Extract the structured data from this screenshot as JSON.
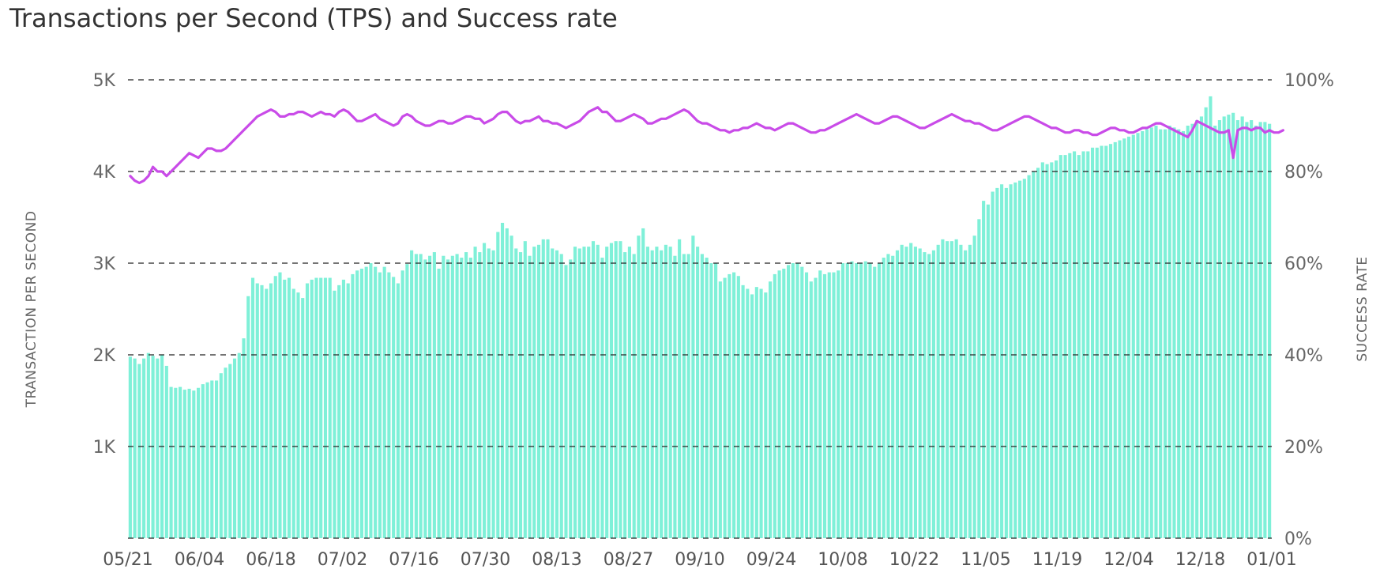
{
  "title": "Transactions per Second (TPS) and Success rate",
  "chart_data": {
    "type": "bar",
    "title": "Transactions per Second (TPS) and Success rate",
    "ylabel": "TRANSACTION PER SECOND",
    "y2label": "SUCCESS RATE",
    "ylim": [
      0,
      5000
    ],
    "y2lim": [
      0,
      100
    ],
    "yticks": [
      "5K",
      "4K",
      "3K",
      "2K",
      "1K"
    ],
    "y2ticks": [
      "100%",
      "80%",
      "60%",
      "40%",
      "20%",
      "0%"
    ],
    "xticks": [
      "05/21",
      "06/04",
      "06/18",
      "07/02",
      "07/16",
      "07/30",
      "08/13",
      "08/27",
      "09/10",
      "09/24",
      "10/08",
      "10/22",
      "11/05",
      "11/19",
      "12/04",
      "12/18",
      "01/01"
    ],
    "grid": true,
    "colors": {
      "bars": "#7ff0d8",
      "line": "#c94be8",
      "grid": "#222222"
    },
    "series": [
      {
        "type": "bar",
        "axis": "left",
        "values": [
          1980,
          1960,
          1900,
          1960,
          2020,
          1990,
          1960,
          2000,
          1880,
          1650,
          1640,
          1650,
          1620,
          1630,
          1610,
          1640,
          1680,
          1700,
          1720,
          1720,
          1800,
          1860,
          1900,
          1960,
          2020,
          2180,
          2640,
          2840,
          2780,
          2760,
          2720,
          2780,
          2860,
          2900,
          2820,
          2840,
          2720,
          2680,
          2620,
          2780,
          2820,
          2840,
          2840,
          2840,
          2840,
          2700,
          2760,
          2820,
          2780,
          2880,
          2920,
          2940,
          2960,
          3000,
          2960,
          2900,
          2960,
          2900,
          2850,
          2780,
          2920,
          2990,
          3140,
          3100,
          3100,
          3040,
          3080,
          3120,
          2940,
          3080,
          3040,
          3080,
          3100,
          3060,
          3120,
          3060,
          3180,
          3120,
          3220,
          3160,
          3140,
          3340,
          3440,
          3380,
          3300,
          3160,
          3120,
          3240,
          3080,
          3180,
          3200,
          3260,
          3260,
          3160,
          3140,
          3100,
          2980,
          3040,
          3180,
          3160,
          3180,
          3180,
          3240,
          3200,
          3060,
          3180,
          3220,
          3240,
          3240,
          3120,
          3180,
          3100,
          3300,
          3380,
          3180,
          3140,
          3180,
          3140,
          3200,
          3180,
          3080,
          3260,
          3100,
          3100,
          3300,
          3180,
          3100,
          3060,
          3000,
          3000,
          2800,
          2840,
          2880,
          2900,
          2860,
          2760,
          2720,
          2660,
          2740,
          2720,
          2680,
          2800,
          2880,
          2920,
          2940,
          2980,
          3000,
          3000,
          2960,
          2900,
          2800,
          2840,
          2920,
          2880,
          2900,
          2900,
          2920,
          3000,
          3000,
          3020,
          3000,
          3000,
          3020,
          3000,
          2960,
          3000,
          3060,
          3100,
          3080,
          3140,
          3200,
          3180,
          3220,
          3180,
          3160,
          3120,
          3100,
          3140,
          3200,
          3260,
          3240,
          3240,
          3260,
          3200,
          3140,
          3200,
          3300,
          3480,
          3680,
          3640,
          3780,
          3820,
          3860,
          3820,
          3860,
          3880,
          3900,
          3920,
          3960,
          4000,
          4040,
          4100,
          4080,
          4100,
          4120,
          4180,
          4180,
          4200,
          4220,
          4180,
          4220,
          4220,
          4260,
          4260,
          4280,
          4280,
          4300,
          4320,
          4340,
          4360,
          4380,
          4400,
          4420,
          4440,
          4460,
          4480,
          4500,
          4460,
          4460,
          4500,
          4480,
          4460,
          4440,
          4500,
          4520,
          4560,
          4600,
          4700,
          4820,
          4500,
          4560,
          4600,
          4620,
          4640,
          4560,
          4600,
          4540,
          4560,
          4500,
          4540,
          4540,
          4520
        ]
      },
      {
        "type": "line",
        "axis": "right",
        "values": [
          79,
          78,
          77.5,
          78,
          79,
          81,
          80,
          80,
          79,
          80,
          81,
          82,
          83,
          84,
          83.5,
          83,
          84,
          85,
          85,
          84.5,
          84.5,
          85,
          86,
          87,
          88,
          89,
          90,
          91,
          92,
          92.5,
          93,
          93.5,
          93,
          92,
          92,
          92.5,
          92.5,
          93,
          93,
          92.5,
          92,
          92.5,
          93,
          92.5,
          92.5,
          92,
          93,
          93.5,
          93,
          92,
          91,
          91,
          91.5,
          92,
          92.5,
          91.5,
          91,
          90.5,
          90,
          90.5,
          92,
          92.5,
          92,
          91,
          90.5,
          90,
          90,
          90.5,
          91,
          91,
          90.5,
          90.5,
          91,
          91.5,
          92,
          92,
          91.5,
          91.5,
          90.5,
          91,
          91.5,
          92.5,
          93,
          93,
          92,
          91,
          90.5,
          91,
          91,
          91.5,
          92,
          91,
          91,
          90.5,
          90.5,
          90,
          89.5,
          90,
          90.5,
          91,
          92,
          93,
          93.5,
          94,
          93,
          93,
          92,
          91,
          91,
          91.5,
          92,
          92.5,
          92,
          91.5,
          90.5,
          90.5,
          91,
          91.5,
          91.5,
          92,
          92.5,
          93,
          93.5,
          93,
          92,
          91,
          90.5,
          90.5,
          90,
          89.5,
          89,
          89,
          88.5,
          89,
          89,
          89.5,
          89.5,
          90,
          90.5,
          90,
          89.5,
          89.5,
          89,
          89.5,
          90,
          90.5,
          90.5,
          90,
          89.5,
          89,
          88.5,
          88.5,
          89,
          89,
          89.5,
          90,
          90.5,
          91,
          91.5,
          92,
          92.5,
          92,
          91.5,
          91,
          90.5,
          90.5,
          91,
          91.5,
          92,
          92,
          91.5,
          91,
          90.5,
          90,
          89.5,
          89.5,
          90,
          90.5,
          91,
          91.5,
          92,
          92.5,
          92,
          91.5,
          91,
          91,
          90.5,
          90.5,
          90,
          89.5,
          89,
          89,
          89.5,
          90,
          90.5,
          91,
          91.5,
          92,
          92,
          91.5,
          91,
          90.5,
          90,
          89.5,
          89.5,
          89,
          88.5,
          88.5,
          89,
          89,
          88.5,
          88.5,
          88,
          88,
          88.5,
          89,
          89.5,
          89.5,
          89,
          89,
          88.5,
          88.5,
          89,
          89.5,
          89.5,
          90,
          90.5,
          90.5,
          90,
          89.5,
          89,
          88.5,
          88,
          87.5,
          89,
          91,
          90.5,
          90,
          89.5,
          89,
          88.5,
          88.5,
          89,
          83,
          89,
          89.5,
          89.5,
          89,
          89.5,
          89.5,
          88.5,
          89,
          88.5,
          88.5,
          89
        ]
      }
    ]
  }
}
